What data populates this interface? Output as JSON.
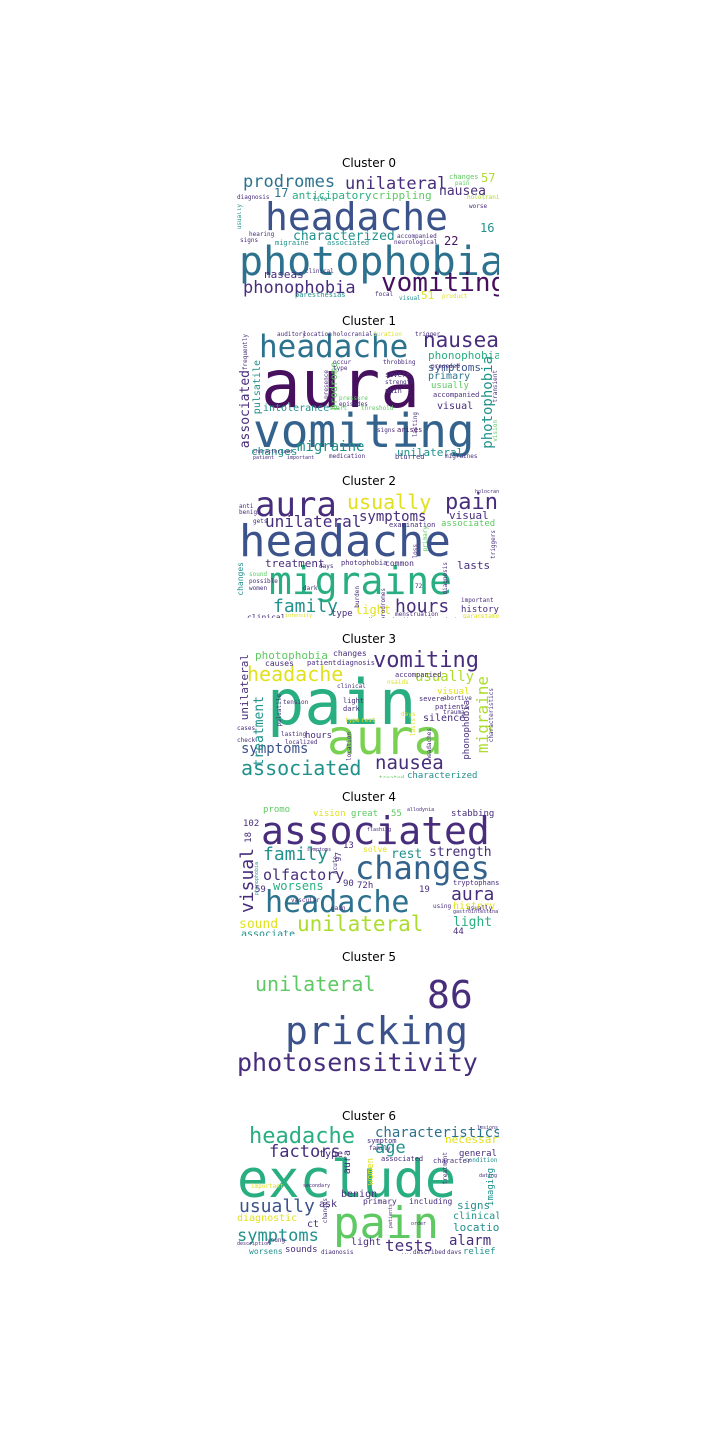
{
  "colors": {
    "dark_purple": "#46105f",
    "purple": "#472d7b",
    "indigo": "#3b528b",
    "blue": "#33638d",
    "teal": "#2c728e",
    "teal2": "#21918c",
    "green": "#28ae80",
    "lightgreen": "#5ec962",
    "lime": "#addc30",
    "yellow": "#e0e01f"
  },
  "clusters": [
    {
      "title": "Cluster 0",
      "words": [
        "photophobia",
        "headache",
        "vomiting",
        "phonophobia",
        "unilateral",
        "prodromes",
        "nausea",
        "characterized",
        "anticipatory",
        "crippling",
        "naseas",
        "57",
        "22",
        "17",
        "16",
        "51",
        "changes",
        "pain",
        "holotranial",
        "diagnosis",
        "hearing",
        "signs",
        "migraine",
        "associated",
        "accompanied",
        "neurological",
        "worse",
        "clinical",
        "paresthesias",
        "focal",
        "visual",
        "product",
        "usually",
        "life"
      ]
    },
    {
      "title": "Cluster 1",
      "words": [
        "aura",
        "vomiting",
        "headache",
        "nausea",
        "photophobia",
        "associated",
        "migraine",
        "phonophobia",
        "symptoms",
        "pulsatile",
        "intolerance",
        "changes",
        "unilateral",
        "primary",
        "usually",
        "prodrome",
        "visual",
        "accompanied",
        "severe",
        "strength",
        "pain",
        "episodes",
        "pressure",
        "arises",
        "lasting",
        "transient",
        "frequently",
        "presence",
        "signs",
        "threshold",
        "start",
        "auditory",
        "location",
        "holocranial",
        "duration",
        "throbbing",
        "occur",
        "type",
        "preceded",
        "blurred",
        "medication",
        "important",
        "patient",
        "characterized",
        "migraines",
        "vision",
        "trigger"
      ]
    },
    {
      "title": "Cluster 2",
      "words": [
        "headache",
        "migraine",
        "aura",
        "pain",
        "usually",
        "unilateral",
        "symptoms",
        "family",
        "hours",
        "light",
        "visual",
        "treatment",
        "associated",
        "lasts",
        "history",
        "type",
        "changes",
        "clinical",
        "women",
        "possible",
        "sound",
        "common",
        "photophobia",
        "days",
        "prodromes",
        "dark",
        "examination",
        "primary",
        "diagnosis",
        "triggers",
        "important",
        "menstruation",
        "duration",
        "characterized",
        "burden",
        "disease",
        "paracetamol",
        "72",
        "anti",
        "benign",
        "gets",
        "intensity",
        "loss",
        "holocranial"
      ]
    },
    {
      "title": "Cluster 3",
      "words": [
        "pain",
        "aura",
        "headache",
        "vomiting",
        "associated",
        "nausea",
        "migraine",
        "symptoms",
        "treatment",
        "unilateral",
        "usually",
        "photophobia",
        "changes",
        "causes",
        "patient",
        "diagnosis",
        "accompanied",
        "visual",
        "severe",
        "abortive",
        "silence",
        "patients",
        "trauma",
        "phonophobia",
        "hours",
        "localized",
        "tension",
        "pulsatile",
        "light",
        "dark",
        "lasting",
        "characterized",
        "clinical",
        "check",
        "cases",
        "days",
        "type",
        "rest",
        "treated",
        "location",
        "headaches",
        "characteristics",
        "nsaids",
        "lasts"
      ]
    },
    {
      "title": "Cluster 4",
      "words": [
        "associated",
        "changes",
        "headache",
        "unilateral",
        "visual",
        "family",
        "olfactory",
        "worsens",
        "rest",
        "strength",
        "aura",
        "light",
        "sound",
        "associate",
        "history",
        "promo",
        "vision",
        "great",
        "55",
        "stabbing",
        "102",
        "18",
        "13",
        "97",
        "solve",
        "90",
        "72h",
        "59",
        "19",
        "44",
        "tryptophans",
        "usually",
        "using",
        "vascular",
        "acute",
        "pain",
        "flashing",
        "allodynia",
        "symptoms",
        "phonophobia",
        "gastrointestinal"
      ]
    },
    {
      "title": "Cluster 5",
      "words": [
        "unilateral",
        "86",
        "pricking",
        "photosensitivity"
      ]
    },
    {
      "title": "Cluster 6",
      "words": [
        "exclude",
        "pain",
        "headache",
        "characteristics",
        "factors",
        "age",
        "usually",
        "symptoms",
        "tests",
        "alarm",
        "relief",
        "location",
        "clinical",
        "signs",
        "imaging",
        "general",
        "condition",
        "necessary",
        "type",
        "aura",
        "benign",
        "ask",
        "primary",
        "including",
        "diagnostic",
        "ct",
        "light",
        "sounds",
        "worsens",
        "diagnosis",
        "additional",
        "described",
        "days",
        "women",
        "changes",
        "symptom",
        "family",
        "associated",
        "character",
        "young",
        "description",
        "patients",
        "order",
        "important",
        "secondary",
        "treatment",
        "dating",
        "lesions"
      ]
    }
  ]
}
